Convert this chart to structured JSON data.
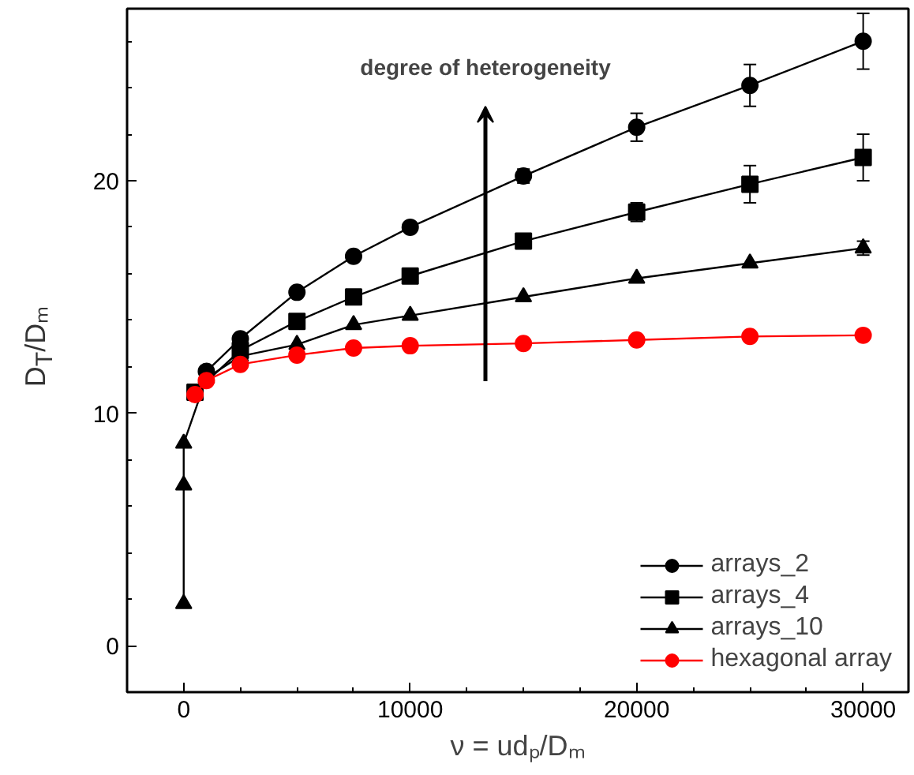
{
  "chart_data": {
    "type": "line",
    "xlabel": "ν = udₚ/Dₘ",
    "ylabel": "D$_{T}$/Dₘ",
    "x": [
      0,
      0,
      0,
      500,
      1000,
      2500,
      5000,
      7500,
      10000,
      15000,
      20000,
      25000,
      30000
    ],
    "xlim": [
      -2500,
      32000
    ],
    "xticks": [
      0,
      10000,
      20000,
      30000
    ],
    "ylim": [
      -2,
      27.4
    ],
    "yticks": [
      0,
      10,
      20
    ],
    "legend": "bottom right",
    "grid": false,
    "line_style": "solid",
    "annotations": [
      "degree of heterogeneity"
    ],
    "series": [
      {
        "name": "arrays_2",
        "color": "#000000",
        "marker": "circle",
        "values": [
          null,
          null,
          null,
          null,
          11.8,
          13.2,
          15.2,
          16.75,
          18.0,
          20.2,
          22.3,
          24.1,
          26.0
        ],
        "errors": [
          null,
          null,
          null,
          null,
          null,
          null,
          null,
          null,
          null,
          0.3,
          0.6,
          0.9,
          1.2
        ]
      },
      {
        "name": "arrays_4",
        "color": "#000000",
        "marker": "square",
        "values": [
          null,
          null,
          null,
          10.9,
          null,
          12.7,
          13.95,
          15.0,
          15.9,
          17.4,
          18.65,
          19.85,
          21.0
        ],
        "errors": [
          null,
          null,
          null,
          null,
          null,
          null,
          null,
          null,
          null,
          0.3,
          0.4,
          0.8,
          1.0
        ]
      },
      {
        "name": "arrays_10",
        "color": "#000000",
        "marker": "triangle",
        "values": [
          1.8,
          6.9,
          8.7,
          null,
          11.5,
          12.45,
          12.95,
          13.8,
          14.2,
          15.0,
          15.8,
          16.45,
          17.1
        ],
        "errors": [
          null,
          null,
          null,
          null,
          null,
          null,
          null,
          null,
          null,
          null,
          null,
          null,
          0.3
        ]
      },
      {
        "name": "hexagonal array",
        "color": "#ff0000",
        "marker": "circle",
        "values": [
          null,
          null,
          null,
          10.8,
          11.4,
          12.1,
          12.5,
          12.8,
          12.9,
          13.0,
          13.15,
          13.3,
          13.35
        ]
      }
    ]
  }
}
